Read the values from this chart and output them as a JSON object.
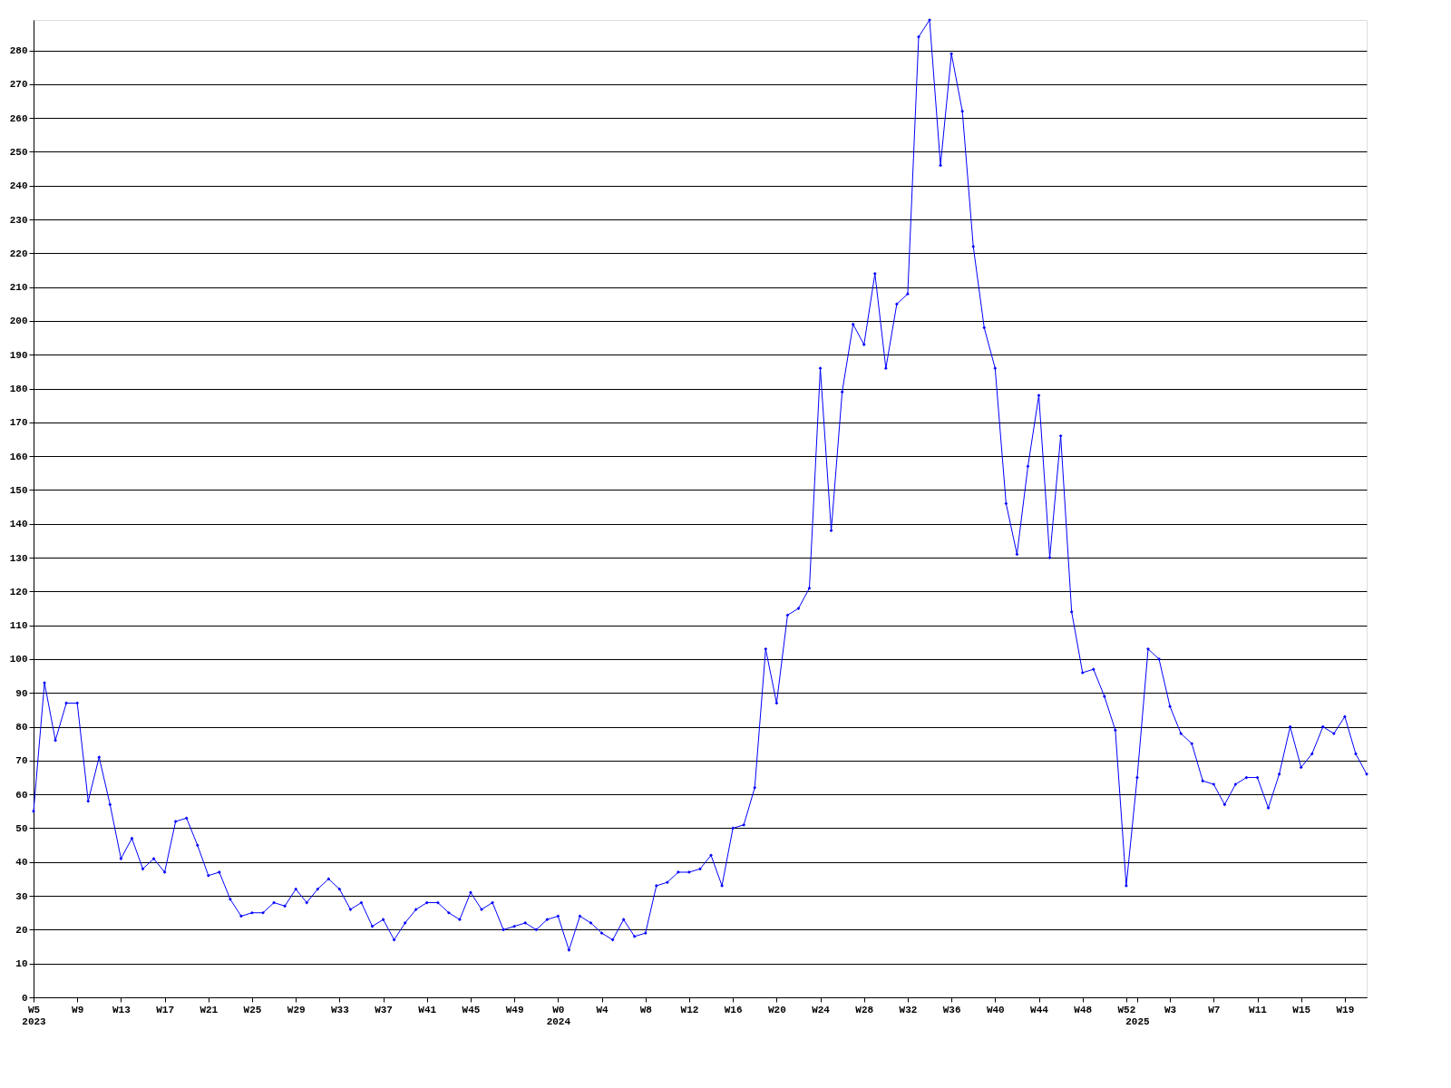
{
  "chart_data": {
    "type": "line",
    "categories": [
      "W5\n2023",
      null,
      null,
      null,
      "W9",
      null,
      null,
      null,
      "W13",
      null,
      null,
      null,
      "W17",
      null,
      null,
      null,
      "W21",
      null,
      null,
      null,
      "W25",
      null,
      null,
      null,
      "W29",
      null,
      null,
      null,
      "W33",
      null,
      null,
      null,
      "W37",
      null,
      null,
      null,
      "W41",
      null,
      null,
      null,
      "W45",
      null,
      null,
      null,
      "W49",
      null,
      null,
      null,
      "W0\n2024",
      null,
      null,
      null,
      "W4",
      null,
      null,
      null,
      "W8",
      null,
      null,
      null,
      "W12",
      null,
      null,
      null,
      "W16",
      null,
      null,
      null,
      "W20",
      null,
      null,
      null,
      "W24",
      null,
      null,
      null,
      "W28",
      null,
      null,
      null,
      "W32",
      null,
      null,
      null,
      "W36",
      null,
      null,
      null,
      "W40",
      null,
      null,
      null,
      "W44",
      null,
      null,
      null,
      "W48",
      null,
      null,
      null,
      "W52",
      "\n2025",
      null,
      null,
      "W3",
      null,
      null,
      null,
      "W7",
      null,
      null,
      null,
      "W11",
      null,
      null,
      null,
      "W15",
      null,
      null,
      null,
      "W19",
      null,
      null
    ],
    "series": [
      {
        "color": "#0000ff",
        "values": [
          55,
          93,
          76,
          87,
          87,
          58,
          71,
          57,
          41,
          47,
          38,
          41,
          37,
          52,
          53,
          45,
          36,
          37,
          29,
          24,
          25,
          25,
          28,
          27,
          32,
          28,
          32,
          35,
          32,
          26,
          28,
          21,
          23,
          17,
          22,
          26,
          28,
          28,
          25,
          23,
          31,
          26,
          28,
          20,
          21,
          22,
          20,
          23,
          24,
          14,
          24,
          22,
          19,
          17,
          23,
          18,
          19,
          33,
          34,
          37,
          37,
          38,
          42,
          33,
          50,
          51,
          62,
          103,
          87,
          113,
          115,
          121,
          186,
          138,
          179,
          199,
          193,
          214,
          186,
          205,
          208,
          284,
          289,
          246,
          279,
          262,
          222,
          198,
          186,
          146,
          131,
          157,
          178,
          130,
          166,
          114,
          96,
          97,
          89,
          79,
          33,
          65,
          103,
          100,
          86,
          78,
          75,
          64,
          63,
          57,
          63,
          65,
          65,
          56,
          66,
          80,
          68,
          72,
          80,
          78,
          83,
          72,
          66
        ]
      }
    ],
    "ylim": [
      0,
      289
    ],
    "yticks": [
      0,
      10,
      20,
      30,
      40,
      50,
      60,
      70,
      80,
      90,
      100,
      110,
      120,
      130,
      140,
      150,
      160,
      170,
      180,
      190,
      200,
      210,
      220,
      230,
      240,
      250,
      260,
      270,
      280
    ],
    "grid": "y",
    "marker": "diamond",
    "line_style": "solid",
    "legend": false
  }
}
